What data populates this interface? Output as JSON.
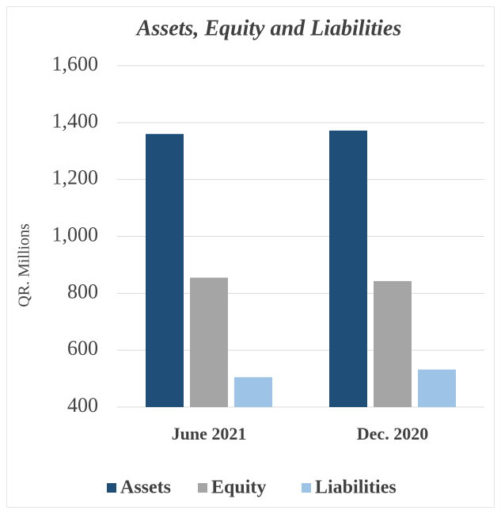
{
  "chart_data": {
    "type": "bar",
    "title": "Assets, Equity and Liabilities",
    "y_label": "QR. Millions",
    "categories": [
      "June 2021",
      "Dec. 2020"
    ],
    "series": [
      {
        "name": "Assets",
        "color": "#1f4e79",
        "values": [
          1360,
          1372
        ]
      },
      {
        "name": "Equity",
        "color": "#a5a5a5",
        "values": [
          855,
          843
        ]
      },
      {
        "name": "Liabilities",
        "color": "#9dc3e6",
        "values": [
          505,
          532
        ]
      }
    ],
    "ylim": [
      400,
      1600
    ],
    "yticks": [
      400,
      600,
      800,
      {
        "value": 1000,
        "label": "1,000"
      },
      {
        "value": 1200,
        "label": "1,200"
      },
      {
        "value": 1400,
        "label": "1,400"
      },
      {
        "value": 1600,
        "label": "1,600"
      }
    ],
    "grid": true,
    "legend": "bottom"
  }
}
